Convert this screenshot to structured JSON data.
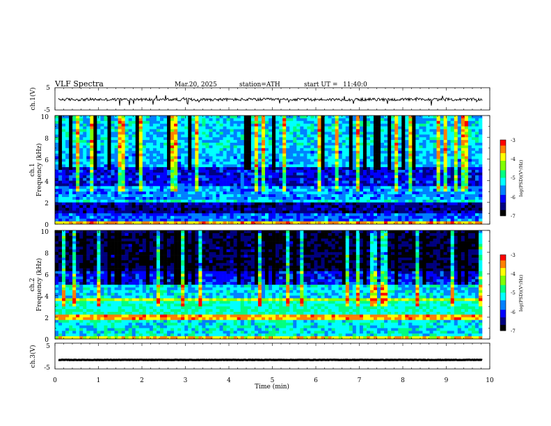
{
  "header": {
    "title": "VLF Spectra",
    "date": "Mar.20, 2025",
    "station": "station=ATH",
    "start": "start UT =",
    "start_time": "11:40:0"
  },
  "chart_data": [
    {
      "type": "line",
      "panel": "ch1",
      "ylabel": "ch.1(V)",
      "ylim": [
        -5,
        5
      ],
      "y_ticks": [
        "5",
        "-5"
      ],
      "xlim": [
        0,
        10
      ],
      "mean_level": -0.3,
      "color": "#000000"
    },
    {
      "type": "heatmap",
      "panel": "ch1-spectrogram",
      "ylabel_top": "ch.1",
      "ylabel": "Frequency (kHz)",
      "ylim": [
        0,
        10
      ],
      "y_ticks": [
        "0",
        "2",
        "4",
        "6",
        "8",
        "10"
      ],
      "xlim": [
        0,
        10
      ],
      "colorbar": {
        "label": "log(PSD)(V²/Hz)",
        "range": [
          -7,
          -3
        ],
        "ticks": [
          "-3",
          "-4",
          "-5",
          "-6",
          "-7"
        ]
      }
    },
    {
      "type": "heatmap",
      "panel": "ch2-spectrogram",
      "ylabel_top": "ch.2",
      "ylabel": "Frequency (kHz)",
      "ylim": [
        0,
        10
      ],
      "y_ticks": [
        "0",
        "2",
        "4",
        "6",
        "8",
        "10"
      ],
      "xlim": [
        0,
        10
      ],
      "colorbar": {
        "label": "log(PSD)(V²/Hz)",
        "range": [
          -7,
          -3
        ],
        "ticks": [
          "-3",
          "-4",
          "-5",
          "-6",
          "-7"
        ]
      }
    },
    {
      "type": "line",
      "panel": "ch3",
      "ylabel": "ch.3(V)",
      "ylim": [
        -5,
        5
      ],
      "y_ticks": [
        "5",
        "-5"
      ],
      "xlim": [
        0,
        10
      ],
      "mean_level": -1.5,
      "color": "#000000",
      "xlabel": "Time (min)",
      "x_ticks": [
        "0",
        "1",
        "2",
        "3",
        "4",
        "5",
        "6",
        "7",
        "8",
        "9",
        "10"
      ]
    }
  ],
  "colors": {
    "colormap": [
      "#000000",
      "#00007f",
      "#0000ff",
      "#0080ff",
      "#00ffff",
      "#00ff80",
      "#80ff00",
      "#ffff00",
      "#ff8000",
      "#ff0000",
      "#ffffff"
    ]
  }
}
